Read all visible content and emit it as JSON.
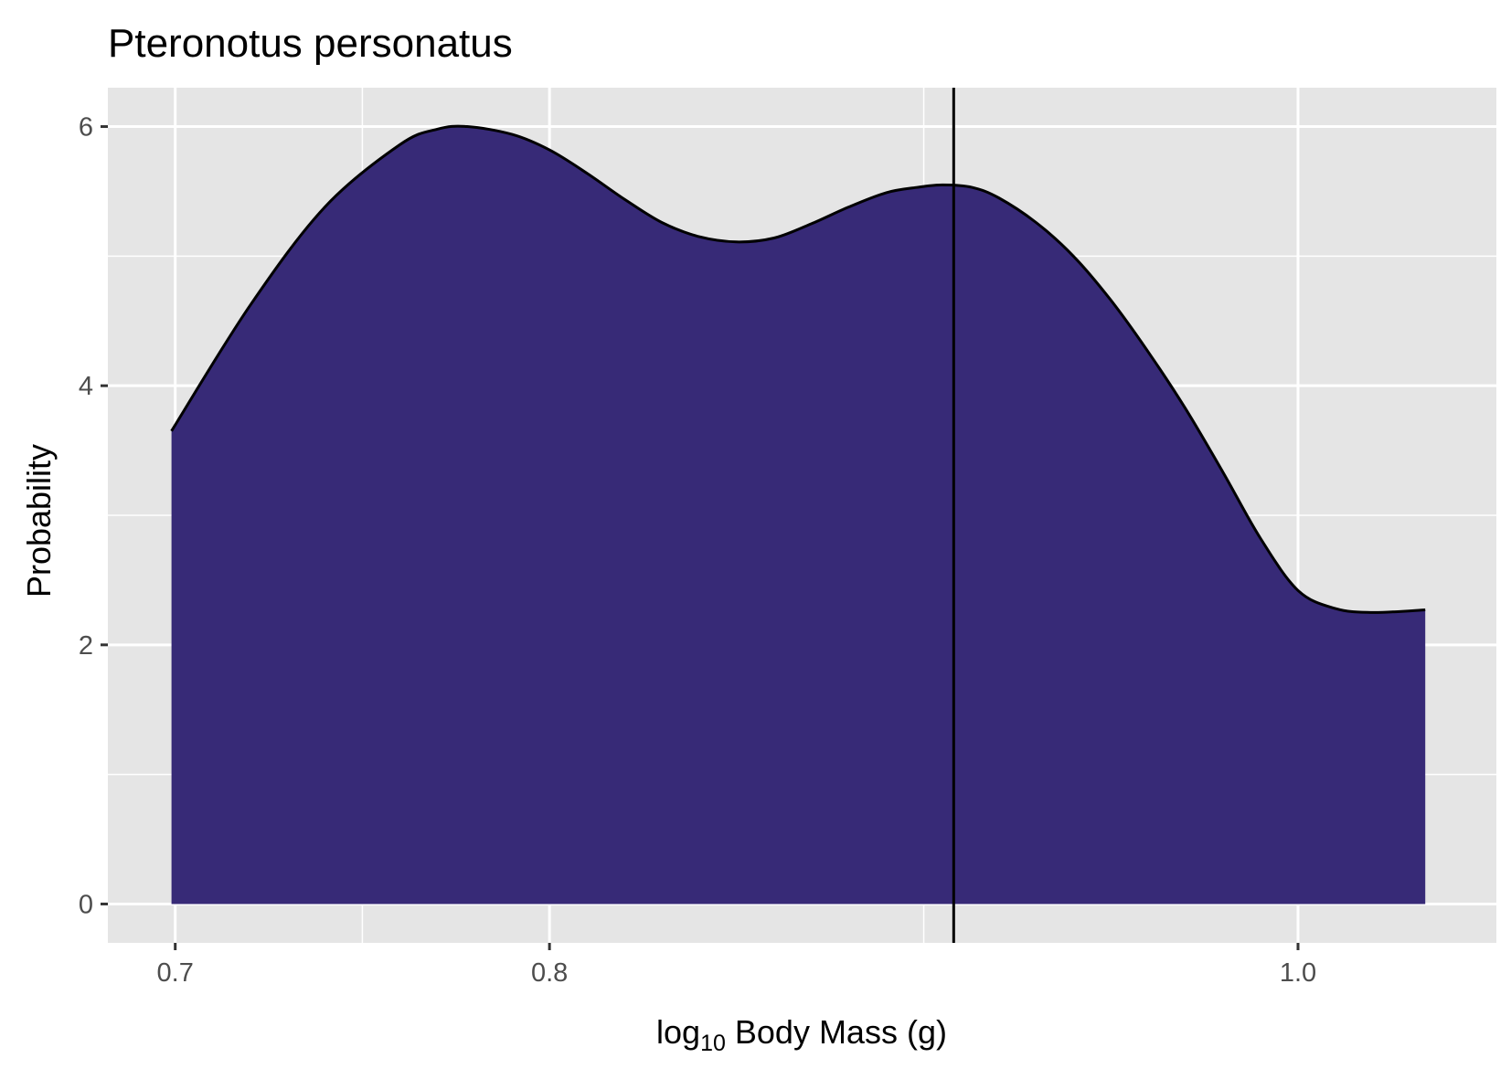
{
  "chart_data": {
    "type": "area",
    "title": "Pteronotus personatus",
    "xlabel": {
      "prefix": "log",
      "subscript": "10",
      "text": "Body Mass",
      "unit": "(g)"
    },
    "ylabel": "Probability",
    "xlim": [
      0.682,
      1.053
    ],
    "ylim": [
      -0.3,
      6.3
    ],
    "x_ticks": [
      {
        "value": 0.7,
        "label": "0.7"
      },
      {
        "value": 0.8,
        "label": "0.8"
      },
      {
        "value": 1.0,
        "label": "1.0"
      }
    ],
    "y_ticks": [
      {
        "value": 0,
        "label": "0"
      },
      {
        "value": 2,
        "label": "2"
      },
      {
        "value": 4,
        "label": "4"
      },
      {
        "value": 6,
        "label": "6"
      }
    ],
    "x_minor_gridlines": [
      0.75,
      0.9
    ],
    "y_minor_gridlines": [
      1,
      3,
      5
    ],
    "grid": true,
    "series": [
      {
        "fill_color": "#372a77",
        "line_color": "#000000",
        "x": [
          0.699,
          0.72,
          0.74,
          0.76,
          0.77,
          0.778,
          0.79,
          0.8,
          0.81,
          0.82,
          0.83,
          0.84,
          0.85,
          0.86,
          0.87,
          0.88,
          0.89,
          0.898,
          0.905,
          0.913,
          0.92,
          0.93,
          0.94,
          0.95,
          0.96,
          0.97,
          0.98,
          0.99,
          1.0,
          1.01,
          1.02,
          1.034
        ],
        "y": [
          3.65,
          4.62,
          5.38,
          5.86,
          5.98,
          6.0,
          5.94,
          5.82,
          5.64,
          5.44,
          5.26,
          5.15,
          5.11,
          5.14,
          5.25,
          5.38,
          5.49,
          5.53,
          5.55,
          5.53,
          5.45,
          5.26,
          5.0,
          4.66,
          4.26,
          3.82,
          3.33,
          2.82,
          2.42,
          2.28,
          2.25,
          2.27
        ]
      }
    ],
    "vline": {
      "x": 0.908,
      "color": "#000000"
    }
  }
}
